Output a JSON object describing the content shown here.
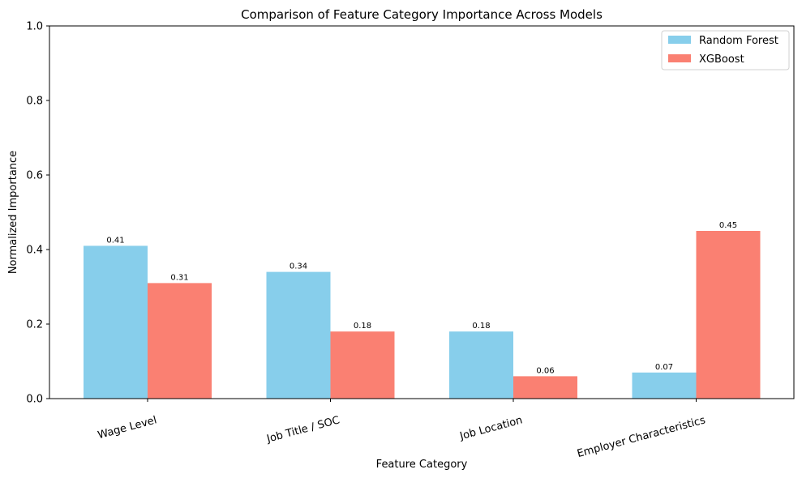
{
  "chart_data": {
    "type": "bar",
    "title": "Comparison of Feature Category Importance Across Models",
    "xlabel": "Feature Category",
    "ylabel": "Normalized Importance",
    "ylim": [
      0,
      1.0
    ],
    "yticks": [
      "0.0",
      "0.2",
      "0.4",
      "0.6",
      "0.8",
      "1.0"
    ],
    "categories": [
      "Wage Level",
      "Job Title / SOC",
      "Job Location",
      "Employer Characteristics"
    ],
    "series": [
      {
        "name": "Random Forest",
        "color": "#87ceeb",
        "values": [
          0.41,
          0.34,
          0.18,
          0.07
        ],
        "labels": [
          "0.41",
          "0.34",
          "0.18",
          "0.07"
        ]
      },
      {
        "name": "XGBoost",
        "color": "#fa8072",
        "values": [
          0.31,
          0.18,
          0.06,
          0.45
        ],
        "labels": [
          "0.31",
          "0.18",
          "0.06",
          "0.45"
        ]
      }
    ],
    "grid": false,
    "legend_position": "top-right",
    "xtick_rotation_deg": 15
  }
}
